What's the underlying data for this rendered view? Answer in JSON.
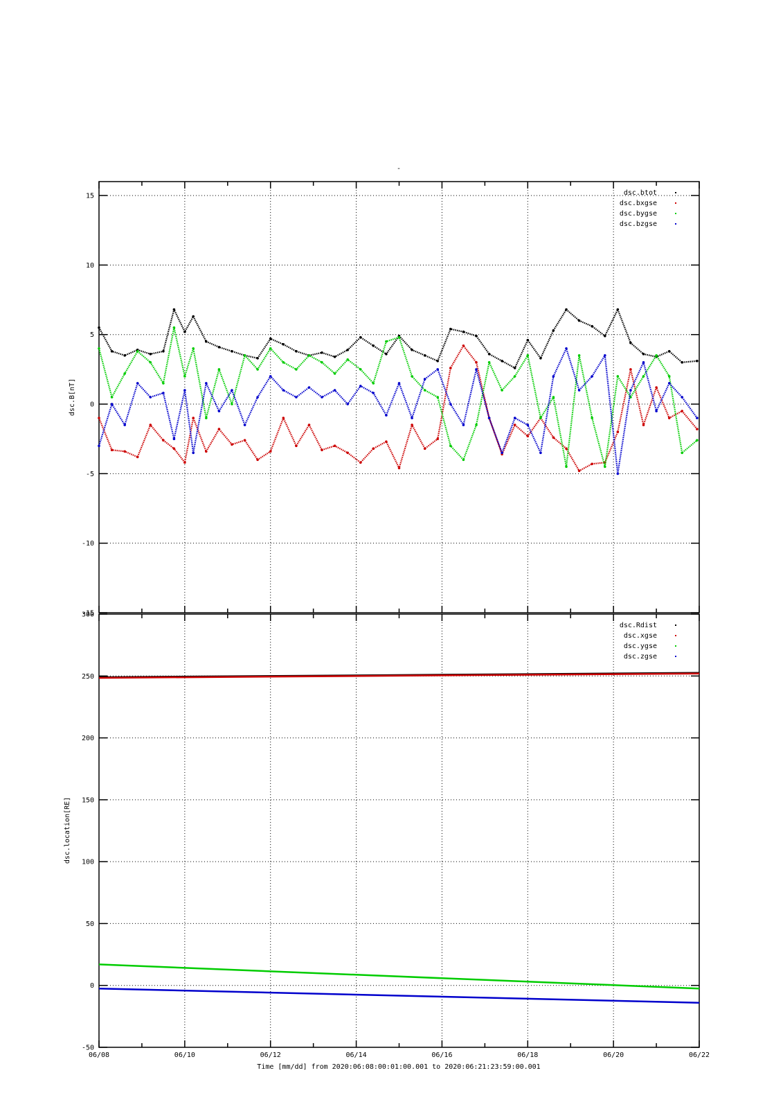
{
  "figure": {
    "title": "-",
    "xlabel": "Time [mm/dd]  from 2020:06:08:00:01:00.001  to  2020:06:21:23:59:00.001"
  },
  "chart_data": [
    {
      "type": "scatter",
      "ylabel": "dsc.B[nT]",
      "ylim": [
        -15,
        16
      ],
      "yticks": [
        "15",
        "10",
        "5",
        "0",
        "-5",
        "-10",
        "-15"
      ],
      "ytick_values": [
        15,
        10,
        5,
        0,
        -5,
        -10,
        -15
      ],
      "xlim": [
        "06/08",
        "06/22"
      ],
      "x_days": [
        8,
        9,
        10,
        11,
        12,
        13,
        14,
        15,
        16,
        17,
        18,
        19,
        20,
        21,
        22
      ],
      "grid": true,
      "legend_position": "top-right",
      "series": [
        {
          "name": "dsc.btot",
          "color": "#000000",
          "x": [
            8.0,
            8.3,
            8.6,
            8.9,
            9.2,
            9.5,
            9.75,
            10.0,
            10.2,
            10.5,
            10.8,
            11.1,
            11.4,
            11.7,
            12.0,
            12.3,
            12.6,
            12.9,
            13.2,
            13.5,
            13.8,
            14.1,
            14.4,
            14.7,
            15.0,
            15.3,
            15.6,
            15.9,
            16.2,
            16.5,
            16.8,
            17.1,
            17.4,
            17.7,
            18.0,
            18.3,
            18.6,
            18.9,
            19.2,
            19.5,
            19.8,
            20.1,
            20.4,
            20.7,
            21.0,
            21.3,
            21.6,
            21.95
          ],
          "y": [
            5.5,
            3.8,
            3.5,
            3.9,
            3.6,
            3.8,
            6.8,
            5.2,
            6.3,
            4.5,
            4.1,
            3.8,
            3.5,
            3.3,
            4.7,
            4.3,
            3.8,
            3.5,
            3.7,
            3.4,
            3.9,
            4.8,
            4.2,
            3.6,
            4.9,
            3.9,
            3.5,
            3.1,
            5.4,
            5.2,
            4.9,
            3.6,
            3.1,
            2.6,
            4.6,
            3.3,
            5.3,
            6.8,
            6.0,
            5.6,
            4.9,
            6.8,
            4.4,
            3.6,
            3.4,
            3.8,
            3.0,
            3.1
          ]
        },
        {
          "name": "dsc.bxgse",
          "color": "#cc0000",
          "x": [
            8.0,
            8.3,
            8.6,
            8.9,
            9.2,
            9.5,
            9.75,
            10.0,
            10.2,
            10.5,
            10.8,
            11.1,
            11.4,
            11.7,
            12.0,
            12.3,
            12.6,
            12.9,
            13.2,
            13.5,
            13.8,
            14.1,
            14.4,
            14.7,
            15.0,
            15.3,
            15.6,
            15.9,
            16.2,
            16.5,
            16.8,
            17.1,
            17.4,
            17.7,
            18.0,
            18.3,
            18.6,
            18.9,
            19.2,
            19.5,
            19.8,
            20.1,
            20.4,
            20.7,
            21.0,
            21.3,
            21.6,
            21.95
          ],
          "y": [
            -1.0,
            -3.3,
            -3.4,
            -3.8,
            -1.5,
            -2.6,
            -3.2,
            -4.2,
            -1.0,
            -3.4,
            -1.8,
            -2.9,
            -2.6,
            -4.0,
            -3.4,
            -1.0,
            -3.0,
            -1.5,
            -3.3,
            -3.0,
            -3.5,
            -4.2,
            -3.2,
            -2.7,
            -4.6,
            -1.5,
            -3.2,
            -2.5,
            2.6,
            4.2,
            3.0,
            -1.0,
            -3.6,
            -1.5,
            -2.3,
            -1.0,
            -2.4,
            -3.2,
            -4.8,
            -4.3,
            -4.2,
            -2.0,
            2.5,
            -1.5,
            1.2,
            -1.0,
            -0.5,
            -1.8
          ]
        },
        {
          "name": "dsc.bygse",
          "color": "#00cc00",
          "x": [
            8.0,
            8.3,
            8.6,
            8.9,
            9.2,
            9.5,
            9.75,
            10.0,
            10.2,
            10.5,
            10.8,
            11.1,
            11.4,
            11.7,
            12.0,
            12.3,
            12.6,
            12.9,
            13.2,
            13.5,
            13.8,
            14.1,
            14.4,
            14.7,
            15.0,
            15.3,
            15.6,
            15.9,
            16.2,
            16.5,
            16.8,
            17.1,
            17.4,
            17.7,
            18.0,
            18.3,
            18.6,
            18.9,
            19.2,
            19.5,
            19.8,
            20.1,
            20.4,
            20.7,
            21.0,
            21.3,
            21.6,
            21.95
          ],
          "y": [
            4.0,
            0.5,
            2.2,
            3.8,
            3.0,
            1.5,
            5.5,
            2.0,
            4.0,
            -1.0,
            2.5,
            0.0,
            3.5,
            2.5,
            4.0,
            3.0,
            2.5,
            3.5,
            3.0,
            2.2,
            3.2,
            2.5,
            1.5,
            4.5,
            4.8,
            2.0,
            1.0,
            0.5,
            -3.0,
            -4.0,
            -1.5,
            3.0,
            1.0,
            2.0,
            3.5,
            -1.0,
            0.5,
            -4.5,
            3.5,
            -1.0,
            -4.5,
            2.0,
            0.5,
            2.0,
            3.5,
            2.0,
            -3.5,
            -2.6
          ]
        },
        {
          "name": "dsc.bzgse",
          "color": "#0000cc",
          "x": [
            8.0,
            8.3,
            8.6,
            8.9,
            9.2,
            9.5,
            9.75,
            10.0,
            10.2,
            10.5,
            10.8,
            11.1,
            11.4,
            11.7,
            12.0,
            12.3,
            12.6,
            12.9,
            13.2,
            13.5,
            13.8,
            14.1,
            14.4,
            14.7,
            15.0,
            15.3,
            15.6,
            15.9,
            16.2,
            16.5,
            16.8,
            17.1,
            17.4,
            17.7,
            18.0,
            18.3,
            18.6,
            18.9,
            19.2,
            19.5,
            19.8,
            20.1,
            20.4,
            20.7,
            21.0,
            21.3,
            21.6,
            21.95
          ],
          "y": [
            -3.0,
            0.0,
            -1.5,
            1.5,
            0.5,
            0.8,
            -2.5,
            1.0,
            -3.5,
            1.5,
            -0.5,
            1.0,
            -1.5,
            0.5,
            2.0,
            1.0,
            0.5,
            1.2,
            0.5,
            1.0,
            0.0,
            1.3,
            0.8,
            -0.8,
            1.5,
            -1.0,
            1.8,
            2.5,
            0.0,
            -1.5,
            2.5,
            -1.0,
            -3.5,
            -1.0,
            -1.5,
            -3.5,
            2.0,
            4.0,
            1.0,
            2.0,
            3.5,
            -5.0,
            1.0,
            3.0,
            -0.5,
            1.5,
            0.5,
            -1.0
          ]
        }
      ]
    },
    {
      "type": "line",
      "ylabel": "dsc.location[RE]",
      "ylim": [
        -50,
        300
      ],
      "yticks": [
        "300",
        "250",
        "200",
        "150",
        "100",
        "50",
        "0",
        "-50"
      ],
      "ytick_values": [
        300,
        250,
        200,
        150,
        100,
        50,
        0,
        -50
      ],
      "xlim": [
        "06/08",
        "06/22"
      ],
      "x_days": [
        8,
        9,
        10,
        11,
        12,
        13,
        14,
        15,
        16,
        17,
        18,
        19,
        20,
        21,
        22
      ],
      "xticks": [
        "06/08",
        "06/10",
        "06/12",
        "06/14",
        "06/16",
        "06/18",
        "06/20",
        "06/22"
      ],
      "xtick_days": [
        8,
        10,
        12,
        14,
        16,
        18,
        20,
        22
      ],
      "grid": true,
      "legend_position": "top-right",
      "series": [
        {
          "name": "dsc.Rdist",
          "color": "#000000",
          "x": [
            8,
            22
          ],
          "y": [
            249.0,
            252.5
          ]
        },
        {
          "name": "dsc.xgse",
          "color": "#cc0000",
          "x": [
            8,
            22
          ],
          "y": [
            248.5,
            252.0
          ]
        },
        {
          "name": "dsc.ygse",
          "color": "#00cc00",
          "x": [
            8,
            22
          ],
          "y": [
            17.0,
            -2.5
          ]
        },
        {
          "name": "dsc.zgse",
          "color": "#0000cc",
          "x": [
            8,
            22
          ],
          "y": [
            -2.5,
            -14.0
          ]
        }
      ]
    }
  ]
}
